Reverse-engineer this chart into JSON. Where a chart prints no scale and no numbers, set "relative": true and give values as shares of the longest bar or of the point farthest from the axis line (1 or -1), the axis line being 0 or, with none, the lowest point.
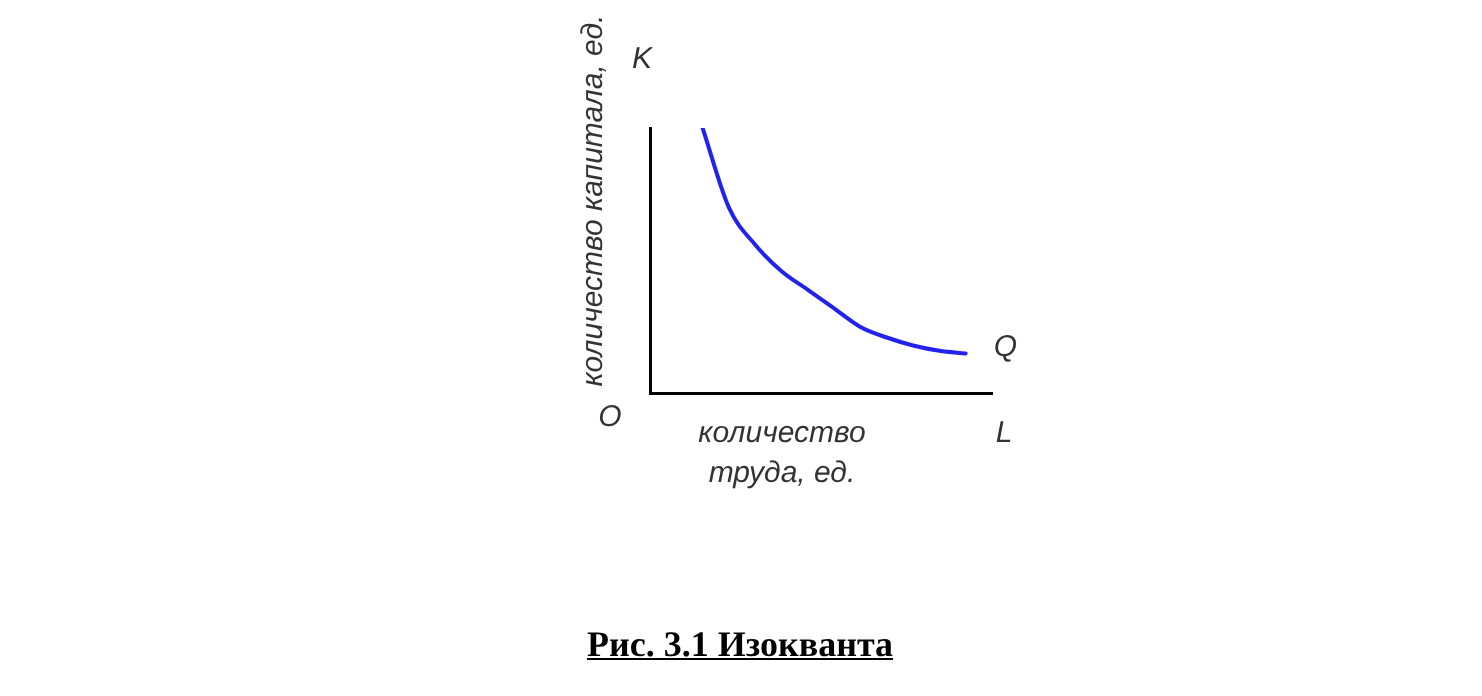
{
  "chart_data": {
    "type": "line",
    "title": "Рис. 3.1 Изокванта",
    "xlabel": "количество\nтруда, ед.",
    "ylabel": "количество капитала, ед.",
    "relative": true,
    "grid": false,
    "legend": false,
    "marker": "none",
    "line_style": "solid",
    "categories": [
      null,
      null,
      null,
      null,
      null,
      null,
      null,
      null,
      null,
      null,
      null,
      null,
      null,
      null
    ],
    "series": [
      {
        "name": "Q",
        "color": "#2222ee",
        "values": [
          null,
          null,
          1,
          0.7,
          0.56,
          0.46,
          0.39,
          0.32,
          0.25,
          0.21,
          0.18,
          0.16,
          0.15,
          null
        ]
      }
    ],
    "annotations": [
      "K",
      "O",
      "L"
    ]
  }
}
